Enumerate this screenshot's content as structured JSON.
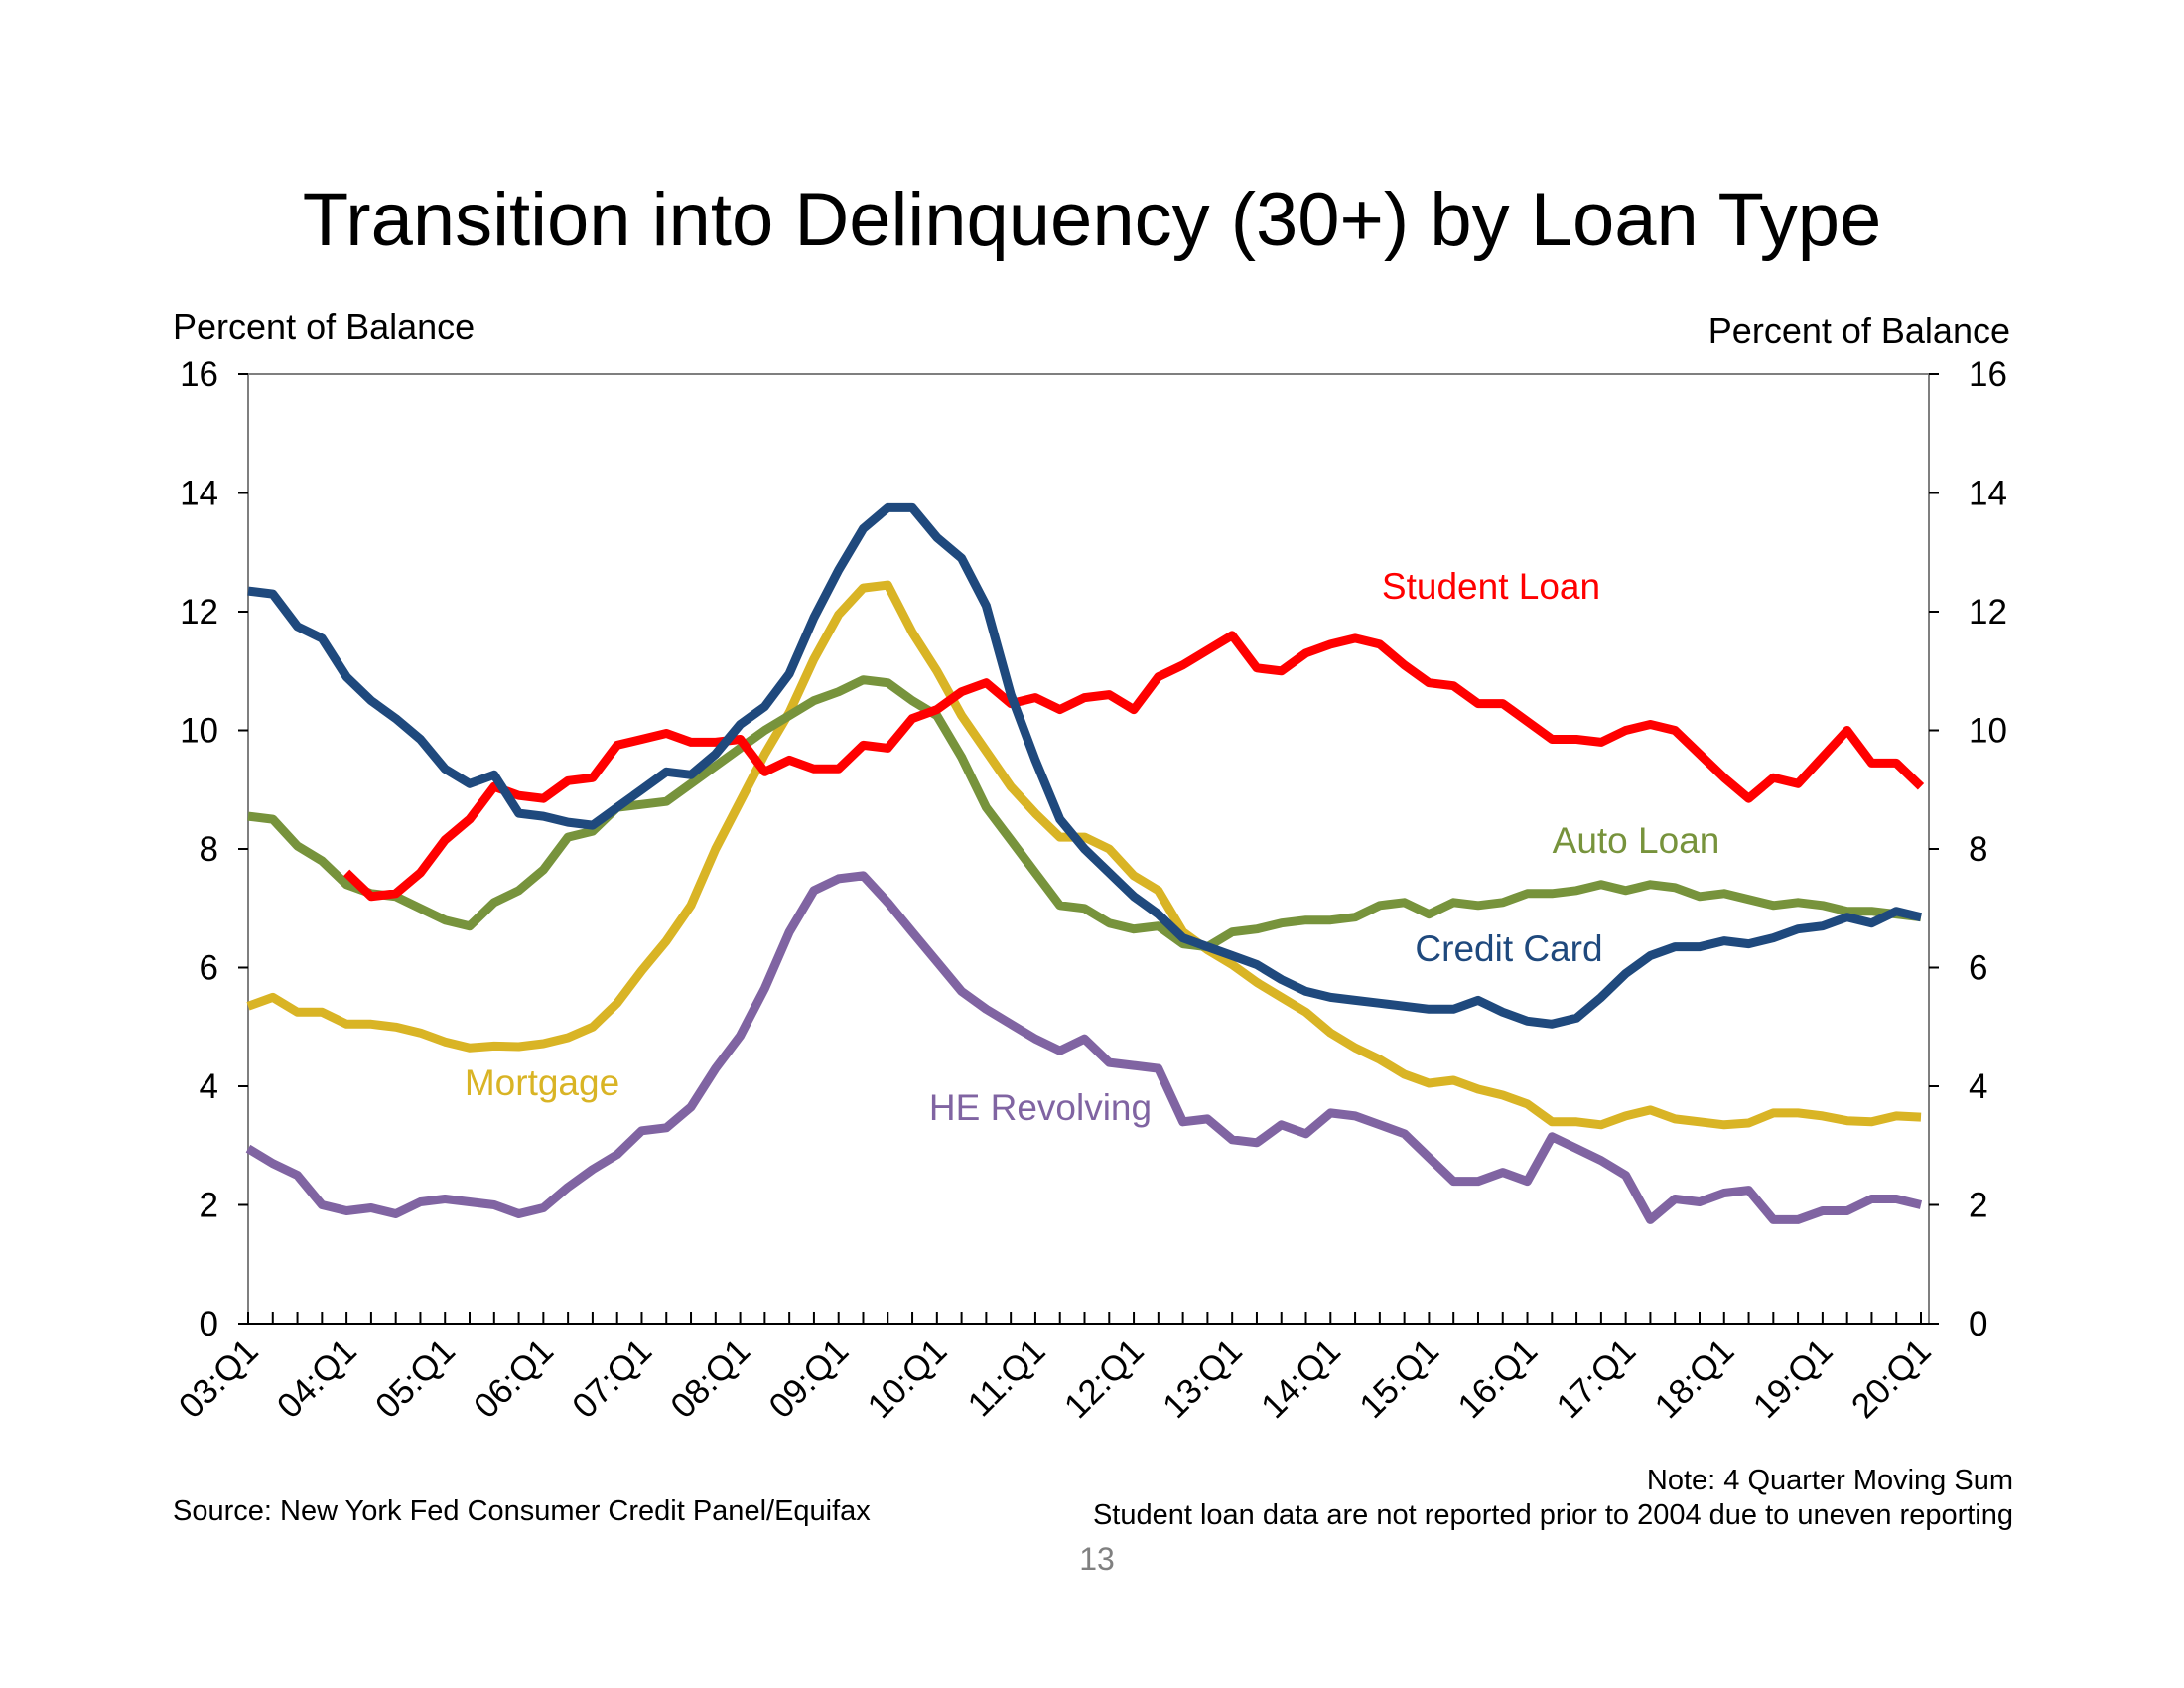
{
  "page": {
    "title": "Transition into Delinquency (30+) by Loan Type",
    "ylabel_left": "Percent of Balance",
    "ylabel_right": "Percent of Balance",
    "source": "Source: New York Fed Consumer Credit Panel/Equifax",
    "note_line1": "Note: 4 Quarter Moving Sum",
    "note_line2": "Student loan data are not reported prior to 2004 due to uneven reporting",
    "page_number": "13"
  },
  "chart_data": {
    "type": "line",
    "title": "Transition into Delinquency (30+) by Loan Type",
    "xlabel": "",
    "ylabel": "Percent of Balance",
    "ylim": [
      0,
      16
    ],
    "yticks": [
      0,
      2,
      4,
      6,
      8,
      10,
      12,
      14,
      16
    ],
    "xlim": [
      0,
      68
    ],
    "x_tick_labels": [
      "03:Q1",
      "04:Q1",
      "05:Q1",
      "06:Q1",
      "07:Q1",
      "08:Q1",
      "09:Q1",
      "10:Q1",
      "11:Q1",
      "12:Q1",
      "13:Q1",
      "14:Q1",
      "15:Q1",
      "16:Q1",
      "17:Q1",
      "18:Q1",
      "19:Q1",
      "20:Q1"
    ],
    "x_tick_positions": [
      0,
      4,
      8,
      12,
      16,
      20,
      24,
      28,
      32,
      36,
      40,
      44,
      48,
      52,
      56,
      60,
      64,
      68
    ],
    "grid": false,
    "series": [
      {
        "name": "Credit Card",
        "color": "#1F497D",
        "start_index": 0,
        "values": [
          12.35,
          12.3,
          11.75,
          11.55,
          10.9,
          10.5,
          10.2,
          9.85,
          9.35,
          9.1,
          9.25,
          8.6,
          8.55,
          8.45,
          8.4,
          8.7,
          9.0,
          9.3,
          9.25,
          9.6,
          10.1,
          10.4,
          10.95,
          11.9,
          12.7,
          13.4,
          13.75,
          13.75,
          13.25,
          12.9,
          12.1,
          10.6,
          9.5,
          8.5,
          8.0,
          7.6,
          7.2,
          6.9,
          6.5,
          6.35,
          6.2,
          6.05,
          5.8,
          5.6,
          5.5,
          5.45,
          5.4,
          5.35,
          5.3,
          5.3,
          5.45,
          5.25,
          5.1,
          5.05,
          5.15,
          5.5,
          5.9,
          6.2,
          6.35,
          6.35,
          6.45,
          6.4,
          6.5,
          6.65,
          6.7,
          6.85,
          6.75,
          6.95,
          6.85
        ]
      },
      {
        "name": "Student Loan",
        "color": "#FF0000",
        "start_index": 4,
        "values": [
          7.6,
          7.2,
          7.25,
          7.6,
          8.15,
          8.5,
          9.05,
          8.9,
          8.85,
          9.15,
          9.2,
          9.75,
          9.85,
          9.95,
          9.8,
          9.8,
          9.85,
          9.3,
          9.5,
          9.35,
          9.35,
          9.75,
          9.7,
          10.2,
          10.35,
          10.65,
          10.8,
          10.45,
          10.55,
          10.35,
          10.55,
          10.6,
          10.35,
          10.9,
          11.1,
          11.35,
          11.6,
          11.05,
          11.0,
          11.3,
          11.45,
          11.55,
          11.45,
          11.1,
          10.8,
          10.75,
          10.45,
          10.45,
          10.15,
          9.85,
          9.85,
          9.8,
          10.0,
          10.1,
          10.0,
          9.6,
          9.2,
          8.85,
          9.2,
          9.1,
          9.55,
          10.0,
          9.45,
          9.45,
          9.05
        ]
      },
      {
        "name": "Auto Loan",
        "color": "#77933C",
        "start_index": 0,
        "values": [
          8.55,
          8.5,
          8.05,
          7.8,
          7.4,
          7.25,
          7.2,
          7.0,
          6.8,
          6.7,
          7.1,
          7.3,
          7.65,
          8.2,
          8.3,
          8.7,
          8.75,
          8.8,
          9.1,
          9.4,
          9.7,
          10.0,
          10.25,
          10.5,
          10.65,
          10.85,
          10.8,
          10.5,
          10.25,
          9.55,
          8.7,
          8.15,
          7.6,
          7.05,
          7.0,
          6.75,
          6.65,
          6.7,
          6.4,
          6.35,
          6.6,
          6.65,
          6.75,
          6.8,
          6.8,
          6.85,
          7.05,
          7.1,
          6.9,
          7.1,
          7.05,
          7.1,
          7.25,
          7.25,
          7.3,
          7.4,
          7.3,
          7.4,
          7.35,
          7.2,
          7.25,
          7.15,
          7.05,
          7.1,
          7.05,
          6.95,
          6.95,
          6.9,
          6.85
        ]
      },
      {
        "name": "Mortgage",
        "color": "#D9B425",
        "start_index": 0,
        "values": [
          5.35,
          5.5,
          5.25,
          5.25,
          5.05,
          5.05,
          5.0,
          4.9,
          4.75,
          4.65,
          4.68,
          4.67,
          4.72,
          4.82,
          5.0,
          5.4,
          5.95,
          6.45,
          7.05,
          8.0,
          8.8,
          9.6,
          10.3,
          11.2,
          11.95,
          12.4,
          12.45,
          11.65,
          11.0,
          10.25,
          9.65,
          9.05,
          8.6,
          8.2,
          8.2,
          8.0,
          7.55,
          7.3,
          6.6,
          6.3,
          6.05,
          5.75,
          5.5,
          5.25,
          4.9,
          4.65,
          4.45,
          4.2,
          4.05,
          4.1,
          3.95,
          3.85,
          3.7,
          3.4,
          3.4,
          3.35,
          3.5,
          3.6,
          3.45,
          3.4,
          3.35,
          3.38,
          3.55,
          3.55,
          3.5,
          3.42,
          3.4,
          3.5,
          3.48
        ]
      },
      {
        "name": "HE Revolving",
        "color": "#8064A2",
        "start_index": 0,
        "values": [
          2.95,
          2.7,
          2.5,
          2.0,
          1.9,
          1.95,
          1.85,
          2.05,
          2.1,
          2.05,
          2.0,
          1.85,
          1.95,
          2.3,
          2.6,
          2.85,
          3.25,
          3.3,
          3.65,
          4.3,
          4.85,
          5.65,
          6.6,
          7.3,
          7.5,
          7.55,
          7.1,
          6.6,
          6.1,
          5.6,
          5.3,
          5.05,
          4.8,
          4.6,
          4.8,
          4.4,
          4.35,
          4.3,
          3.4,
          3.45,
          3.1,
          3.05,
          3.35,
          3.2,
          3.55,
          3.5,
          3.35,
          3.2,
          2.8,
          2.4,
          2.4,
          2.55,
          2.4,
          3.15,
          2.95,
          2.75,
          2.5,
          1.75,
          2.1,
          2.05,
          2.2,
          2.25,
          1.75,
          1.75,
          1.9,
          1.9,
          2.1,
          2.1,
          2.0
        ]
      }
    ],
    "annotations": [
      {
        "text": "Student Loan",
        "series": "Student Loan"
      },
      {
        "text": "Auto Loan",
        "series": "Auto Loan"
      },
      {
        "text": "Credit Card",
        "series": "Credit Card"
      },
      {
        "text": "Mortgage",
        "series": "Mortgage"
      },
      {
        "text": "HE Revolving",
        "series": "HE Revolving"
      }
    ]
  }
}
